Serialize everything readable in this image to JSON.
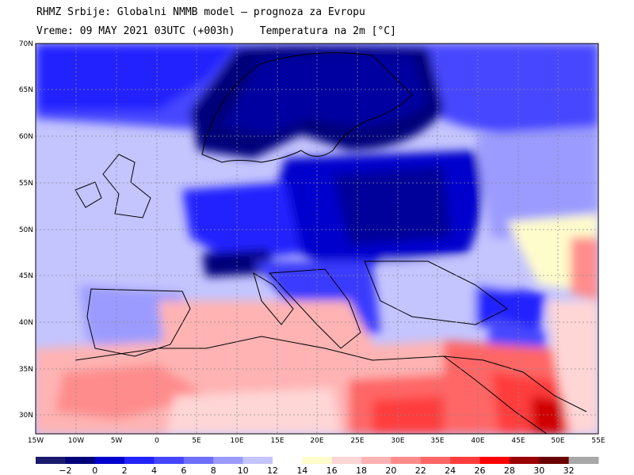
{
  "header": {
    "line1": "RHMZ Srbije: Globalni NMMB model — prognoza za Evropu",
    "line2_prefix": "Vreme: 09 MAY 2021 03UTC (+003h)",
    "line2_title": "Temperatura na 2m [°C]"
  },
  "map": {
    "lat_labels": [
      "70N",
      "65N",
      "60N",
      "55N",
      "50N",
      "45N",
      "40N",
      "35N",
      "30N"
    ],
    "lon_labels": [
      "15W",
      "10W",
      "5W",
      "0",
      "5E",
      "10E",
      "15E",
      "20E",
      "25E",
      "30E",
      "35E",
      "40E",
      "45E",
      "50E",
      "55E"
    ],
    "region": "Europe, North Africa, Middle East",
    "grid": true
  },
  "colorbar": {
    "labels": [
      "−2",
      "0",
      "2",
      "4",
      "6",
      "8",
      "10",
      "12",
      "14",
      "16",
      "18",
      "20",
      "22",
      "24",
      "26",
      "28",
      "30",
      "32"
    ],
    "colors": [
      "#1a1a6e",
      "#00007a",
      "#0000cd",
      "#2323ff",
      "#4646ff",
      "#6e6eff",
      "#9b9bff",
      "#c4c4ff",
      "#ffffff",
      "#fffccc",
      "#ffd6d6",
      "#ffb3b3",
      "#ff8c8c",
      "#ff6666",
      "#ff3d3d",
      "#ff0000",
      "#9b0000",
      "#6b0000",
      "#a8a8a8"
    ]
  }
}
